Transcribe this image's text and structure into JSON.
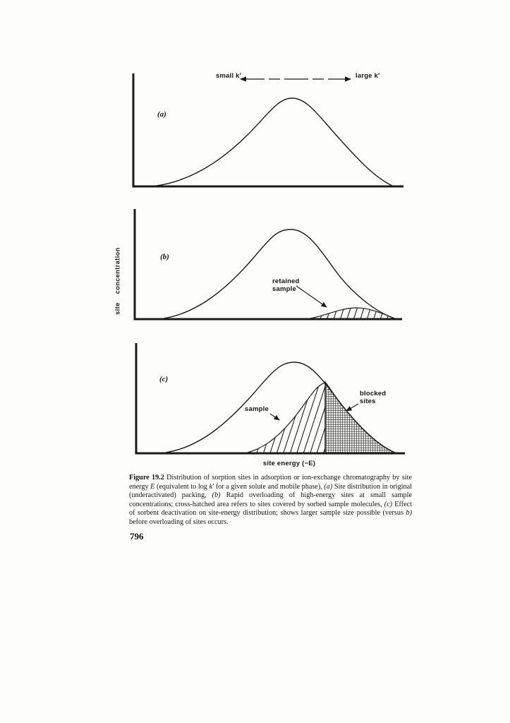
{
  "page": {
    "background": "#fdfdfc",
    "ink": "#1a1a1a",
    "page_number": "796"
  },
  "figure": {
    "top_arrow": {
      "left_label": "small k′",
      "right_label": "large k′"
    },
    "y_axis_label": "site concentration",
    "x_axis_label": "site energy (−E)",
    "panels": [
      {
        "tag": "(a)"
      },
      {
        "tag": "(b)",
        "annotation": "retained sample"
      },
      {
        "tag": "(c)",
        "sample_label": "sample",
        "blocked_label": "blocked sites"
      }
    ]
  },
  "caption": {
    "segments": [
      {
        "b": 1,
        "t": "Figure 19.2"
      },
      {
        "t": " Distribution of sorption sites in adsorption or ion-exchange chromatography by site energy "
      },
      {
        "i": 1,
        "t": "E"
      },
      {
        "t": " (equivalent to log "
      },
      {
        "i": 1,
        "t": "k′"
      },
      {
        "t": " for a given solute and mobile phase), "
      },
      {
        "i": 1,
        "t": "(a)"
      },
      {
        "t": " Site distribution in original (underactivated) packing, "
      },
      {
        "i": 1,
        "t": "(b)"
      },
      {
        "t": " Rapid overloading of high-energy sites at small sample concentrations; cross-hatched area refers to sites covered by sorbed sample molecules, "
      },
      {
        "i": 1,
        "t": "(c)"
      },
      {
        "t": " Effect of sorbent deactivation on site-energy distribution; shows larger sample size possible (versus "
      },
      {
        "i": 1,
        "t": "b)"
      },
      {
        "t": " before overloading of sites occurs."
      }
    ]
  }
}
